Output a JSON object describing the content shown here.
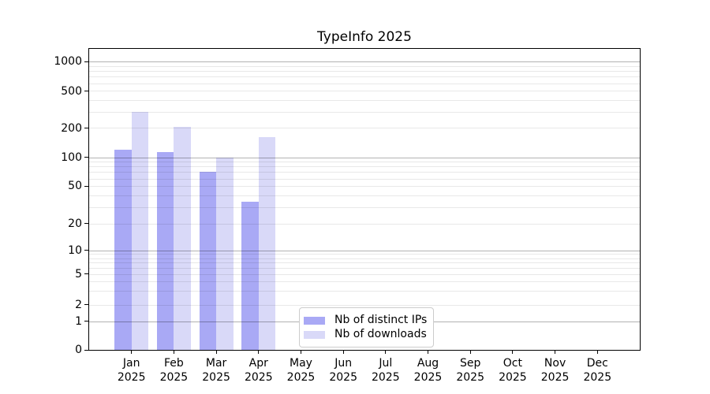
{
  "chart_data": {
    "type": "bar",
    "title": "TypeInfo 2025",
    "categories": [
      "Jan",
      "Feb",
      "Mar",
      "Apr",
      "May",
      "Jun",
      "Jul",
      "Aug",
      "Sep",
      "Oct",
      "Nov",
      "Dec"
    ],
    "category_sublabel": "2025",
    "series": [
      {
        "name": "Nb of distinct IPs",
        "color": "#a9a9f5",
        "values": [
          120,
          113,
          70,
          34,
          0,
          0,
          0,
          0,
          0,
          0,
          0,
          0
        ]
      },
      {
        "name": "Nb of downloads",
        "color": "#d9d9f8",
        "values": [
          300,
          205,
          100,
          160,
          0,
          0,
          0,
          0,
          0,
          0,
          0,
          0
        ]
      }
    ],
    "yscale": "symlog",
    "yticks": [
      0,
      1,
      2,
      5,
      10,
      20,
      50,
      100,
      200,
      500,
      1000
    ],
    "ylim": [
      0,
      1350
    ],
    "xlabel": "",
    "ylabel": "",
    "grid": "on",
    "legend_position": "inside-bottom-center"
  },
  "colors": {
    "background": "#ffffff",
    "text": "#000000",
    "axis_spine": "#000000",
    "major_gridline": "rgba(0,0,0,0.30)",
    "minor_gridline": "rgba(0,0,0,0.09)",
    "legend_border": "#cccccc"
  }
}
